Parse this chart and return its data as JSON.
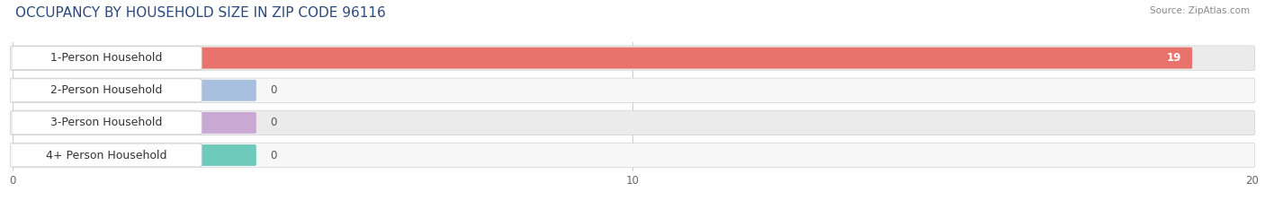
{
  "title": "OCCUPANCY BY HOUSEHOLD SIZE IN ZIP CODE 96116",
  "source": "Source: ZipAtlas.com",
  "categories": [
    "1-Person Household",
    "2-Person Household",
    "3-Person Household",
    "4+ Person Household"
  ],
  "values": [
    19,
    0,
    0,
    0
  ],
  "bar_colors": [
    "#e8736c",
    "#a8bfdf",
    "#c9a8d4",
    "#6ecbbc"
  ],
  "row_bg_colors": [
    "#ebebeb",
    "#f7f7f7",
    "#ebebeb",
    "#f7f7f7"
  ],
  "xlim": [
    0,
    20
  ],
  "xticks": [
    0,
    10,
    20
  ],
  "figsize": [
    14.06,
    2.33
  ],
  "dpi": 100,
  "title_fontsize": 11,
  "label_fontsize": 9,
  "value_fontsize": 8.5,
  "bar_height": 0.68,
  "background_color": "#ffffff",
  "title_color": "#2b4a7c",
  "source_color": "#888888"
}
